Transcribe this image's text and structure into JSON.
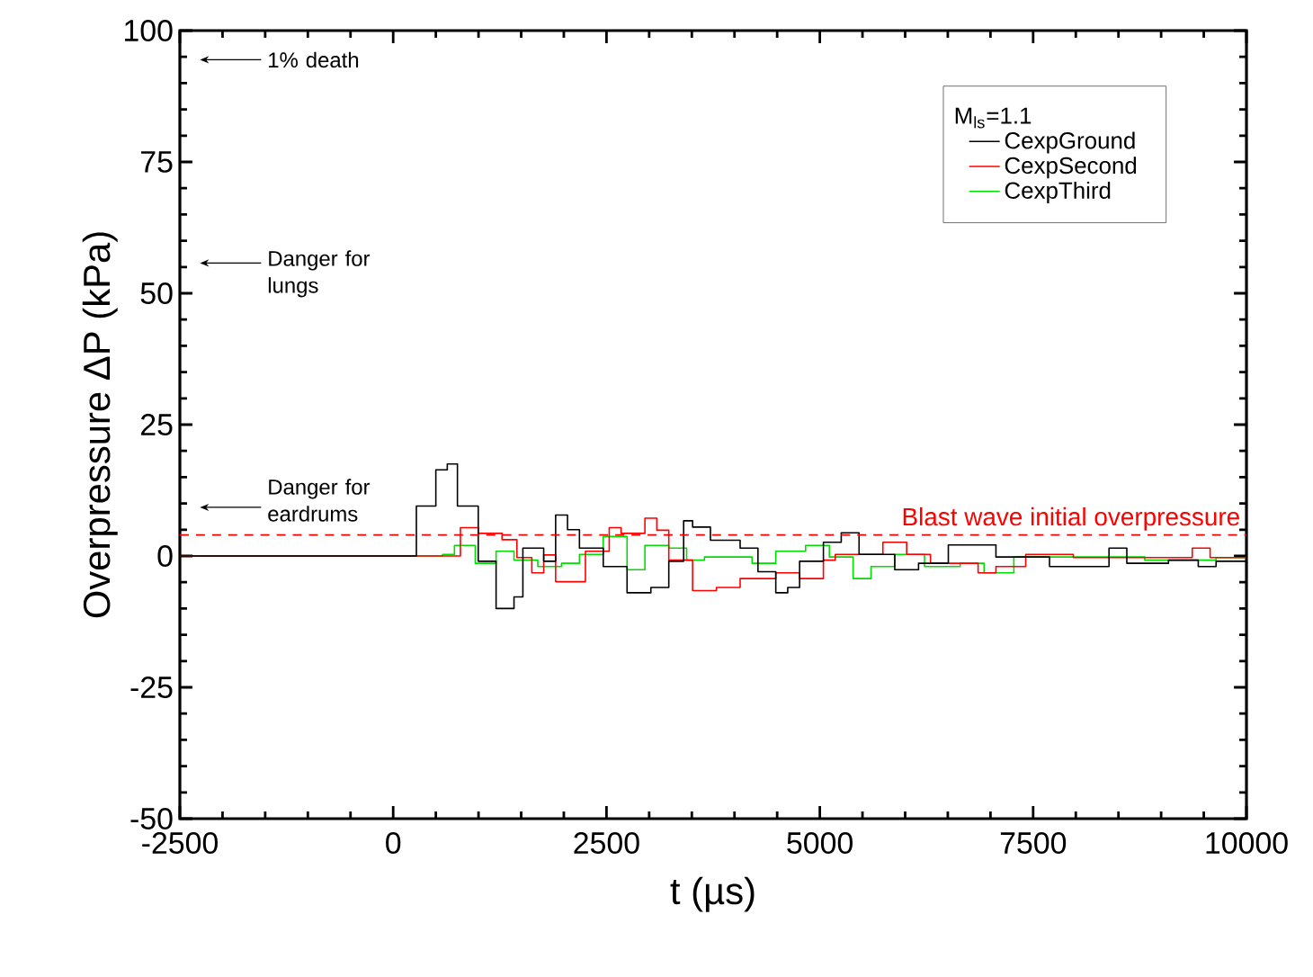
{
  "chart_data": {
    "type": "step",
    "xlabel": "t (µs)",
    "ylabel": "Overpressure ΔP (kPa)",
    "legend_title": "M$_{ls}$=1.1",
    "xlim": [
      -2500,
      10000
    ],
    "ylim": [
      -50,
      100
    ],
    "xticks": [
      -2500,
      0,
      2500,
      5000,
      7500,
      10000
    ],
    "yticks": [
      -50,
      -25,
      0,
      25,
      50,
      75,
      100
    ],
    "grid": false,
    "legend": "top right",
    "marker": "none",
    "line_style": "solid",
    "series": [
      {
        "name": "CexpGround",
        "color": "#000000",
        "x": [
          -2500,
          272,
          500,
          634,
          753,
          997,
          1206,
          1416,
          1520,
          1764,
          1904,
          2043,
          2183,
          2462,
          2741,
          3020,
          3230,
          3404,
          3509,
          3718,
          4066,
          4275,
          4484,
          4624,
          4763,
          5042,
          5251,
          5460,
          5878,
          6157,
          6506,
          6715,
          7064,
          7692,
          8389,
          8598,
          9086,
          9435,
          9644,
          10000
        ],
        "values": [
          0,
          9.5,
          16.4,
          17.5,
          9.5,
          -1,
          -10,
          -7.8,
          1.5,
          -1,
          7.8,
          5,
          1.5,
          -2,
          -7,
          -6,
          -1,
          6.7,
          5.5,
          3,
          1.5,
          -3,
          -7,
          -6,
          -1,
          2.6,
          4.4,
          0.3,
          -2.6,
          -1.4,
          2.1,
          2.1,
          -0.2,
          -2,
          1.5,
          -1.4,
          -0.8,
          -2,
          -1,
          0
        ]
      },
      {
        "name": "CexpSecond",
        "color": "#ff0000",
        "x": [
          -2500,
          788,
          997,
          1276,
          1450,
          1625,
          1764,
          1904,
          2043,
          2253,
          2532,
          2671,
          2950,
          3090,
          3230,
          3509,
          3788,
          4066,
          4484,
          4763,
          5042,
          5181,
          5739,
          6018,
          6297,
          6576,
          6855,
          7064,
          7413,
          7971,
          8529,
          9365,
          9574,
          10000
        ],
        "values": [
          0,
          5.4,
          4.3,
          3.1,
          -0.3,
          -3.2,
          0.2,
          -4.9,
          -4.9,
          0.9,
          5.4,
          4.3,
          7.2,
          4.9,
          -0.8,
          -6.6,
          -6,
          -4.3,
          -3.2,
          -4.3,
          -0.8,
          0.3,
          2.6,
          0.3,
          -1.4,
          -1.4,
          -3.2,
          -2,
          0.3,
          -0.3,
          -0.3,
          1.5,
          -0.3,
          0
        ]
      },
      {
        "name": "CexpThird",
        "color": "#00dd00",
        "x": [
          -2500,
          300,
          579,
          718,
          962,
          1206,
          1416,
          1695,
          1973,
          2183,
          2462,
          2741,
          2950,
          3230,
          3439,
          3648,
          3997,
          4206,
          4484,
          4833,
          5112,
          5390,
          5600,
          5878,
          6227,
          6645,
          6925,
          7274,
          7832,
          8808,
          9644,
          10000
        ],
        "values": [
          0,
          0,
          0.3,
          2,
          -1.4,
          0.9,
          -0.8,
          -2,
          -1.4,
          0.3,
          3.7,
          -2.6,
          2,
          1.5,
          -0.8,
          -0.2,
          -0.2,
          -1.4,
          0.9,
          2,
          -0.2,
          -4.3,
          -2,
          0.3,
          -2,
          -1.4,
          -3.2,
          -0.2,
          -0.2,
          -0.8,
          -0.3,
          0
        ]
      }
    ],
    "ref_lines": [
      {
        "axis": "y",
        "value": 4,
        "label": "Blast wave initial overpressure",
        "color": "#ff0000",
        "line_style": "dashed"
      }
    ],
    "annotations": [
      "1% death",
      "Danger for lungs",
      "Danger for eardrums"
    ]
  }
}
